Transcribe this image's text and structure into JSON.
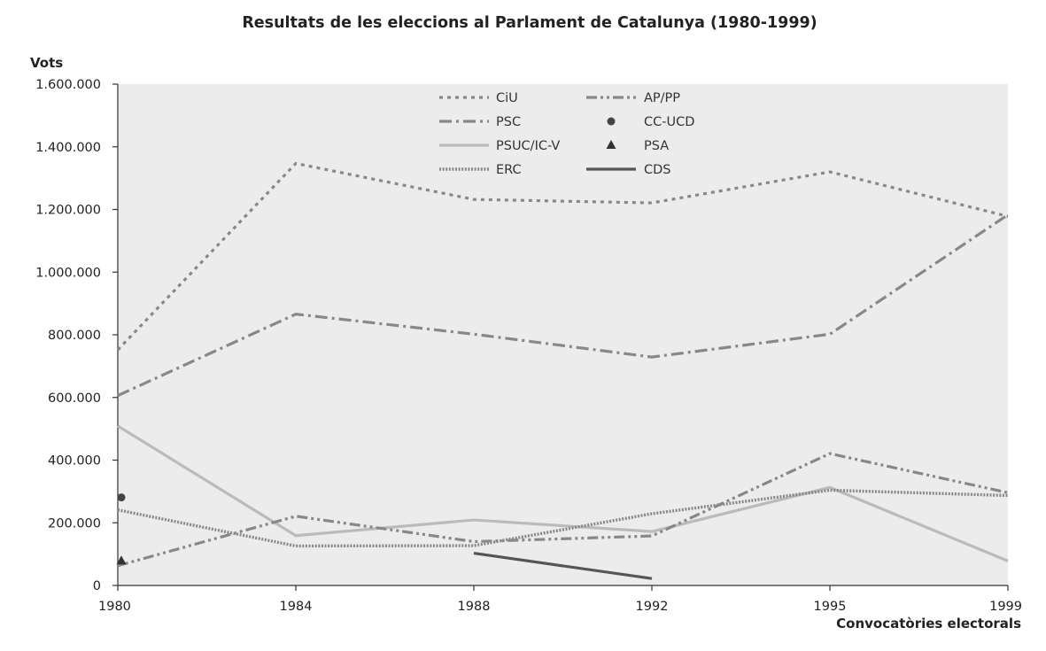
{
  "chart_data": {
    "type": "line",
    "title": "Resultats de les eleccions al Parlament de Catalunya (1980-1999)",
    "ylabel": "Vots",
    "xlabel": "Convocatòries electorals",
    "categories": [
      "1980",
      "1984",
      "1988",
      "1992",
      "1995",
      "1999"
    ],
    "ylim": [
      0,
      1600000
    ],
    "yticks": [
      0,
      200000,
      400000,
      600000,
      800000,
      1000000,
      1200000,
      1400000,
      1600000
    ],
    "ytick_labels": [
      "0",
      "200.000",
      "400.000",
      "600.000",
      "800.000",
      "1.000.000",
      "1.200.000",
      "1.400.000",
      "1.600.000"
    ],
    "grid": false,
    "legend_position": "top-center",
    "background": "#ececec",
    "series": [
      {
        "name": "CiU",
        "values": [
          752000,
          1347000,
          1232000,
          1221000,
          1320000,
          1178000
        ],
        "marker": "line",
        "color": "#888888",
        "dash": "dotted"
      },
      {
        "name": "PSC",
        "values": [
          606000,
          866000,
          802000,
          729000,
          802000,
          1183000
        ],
        "marker": "line",
        "color": "#888888",
        "dash": "dashdot"
      },
      {
        "name": "PSUC/IC-V",
        "values": [
          509000,
          159000,
          209000,
          172000,
          313000,
          78000
        ],
        "marker": "line",
        "color": "#bbbbbb",
        "dash": "solid"
      },
      {
        "name": "ERC",
        "values": [
          241000,
          126000,
          127000,
          229000,
          304000,
          287000
        ],
        "marker": "line",
        "color": "#888888",
        "dash": "fine-dotted"
      },
      {
        "name": "AP/PP",
        "values": [
          63000,
          221000,
          140000,
          158000,
          421000,
          296000
        ],
        "marker": "line",
        "color": "#888888",
        "dash": "dashdotdot"
      },
      {
        "name": "CC-UCD",
        "values": [
          281000,
          null,
          null,
          null,
          null,
          null
        ],
        "marker": "circle",
        "color": "#444444"
      },
      {
        "name": "PSA",
        "values": [
          80000,
          null,
          null,
          null,
          null,
          null
        ],
        "marker": "triangle",
        "color": "#333333"
      },
      {
        "name": "CDS",
        "values": [
          null,
          null,
          103000,
          22000,
          null,
          null
        ],
        "marker": "line",
        "color": "#555555",
        "dash": "solid"
      }
    ]
  }
}
